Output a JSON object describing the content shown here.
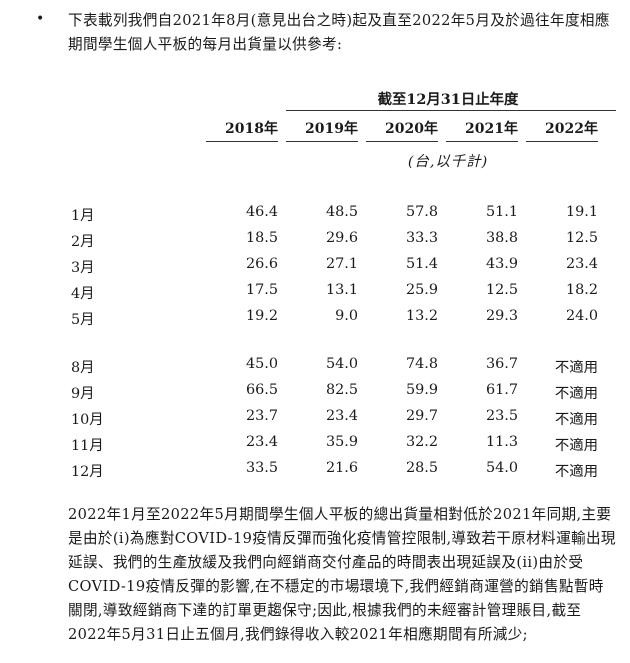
{
  "intro": {
    "bullet": "•",
    "text": "下表載列我們自2021年8月(意見出台之時)起及直至2022年5月及於過往年度相應期間學生個人平板的每月出貨量以供參考:"
  },
  "table": {
    "group_header": "截至12月31日止年度",
    "years": [
      "2018年",
      "2019年",
      "2020年",
      "2021年",
      "2022年"
    ],
    "unit": "(台,以千計)",
    "rows_a": [
      {
        "month": "1月",
        "values": [
          "46.4",
          "48.5",
          "57.8",
          "51.1",
          "19.1"
        ]
      },
      {
        "month": "2月",
        "values": [
          "18.5",
          "29.6",
          "33.3",
          "38.8",
          "12.5"
        ]
      },
      {
        "month": "3月",
        "values": [
          "26.6",
          "27.1",
          "51.4",
          "43.9",
          "23.4"
        ]
      },
      {
        "month": "4月",
        "values": [
          "17.5",
          "13.1",
          "25.9",
          "12.5",
          "18.2"
        ]
      },
      {
        "month": "5月",
        "values": [
          "19.2",
          "9.0",
          "13.2",
          "29.3",
          "24.0"
        ]
      }
    ],
    "rows_b": [
      {
        "month": "8月",
        "values": [
          "45.0",
          "54.0",
          "74.8",
          "36.7",
          "不適用"
        ]
      },
      {
        "month": "9月",
        "values": [
          "66.5",
          "82.5",
          "59.9",
          "61.7",
          "不適用"
        ]
      },
      {
        "month": "10月",
        "values": [
          "23.7",
          "23.4",
          "29.7",
          "23.5",
          "不適用"
        ]
      },
      {
        "month": "11月",
        "values": [
          "23.4",
          "35.9",
          "32.2",
          "11.3",
          "不適用"
        ]
      },
      {
        "month": "12月",
        "values": [
          "33.5",
          "21.6",
          "28.5",
          "54.0",
          "不適用"
        ]
      }
    ]
  },
  "footer": {
    "text": "2022年1月至2022年5月期間學生個人平板的總出貨量相對低於2021年同期,主要是由於(i)為應對COVID-19疫情反彈而強化疫情管控限制,導致若干原材料運輸出現延誤、我們的生產放緩及我們向經銷商交付產品的時間表出現延誤及(ii)由於受COVID-19疫情反彈的影響,在不穩定的市場環境下,我們經銷商運營的銷售點暫時關閉,導致經銷商下達的訂單更趨保守;因此,根據我們的未經審計管理賬目,截至2022年5月31日止五個月,我們錄得收入較2021年相應期間有所減少;"
  }
}
